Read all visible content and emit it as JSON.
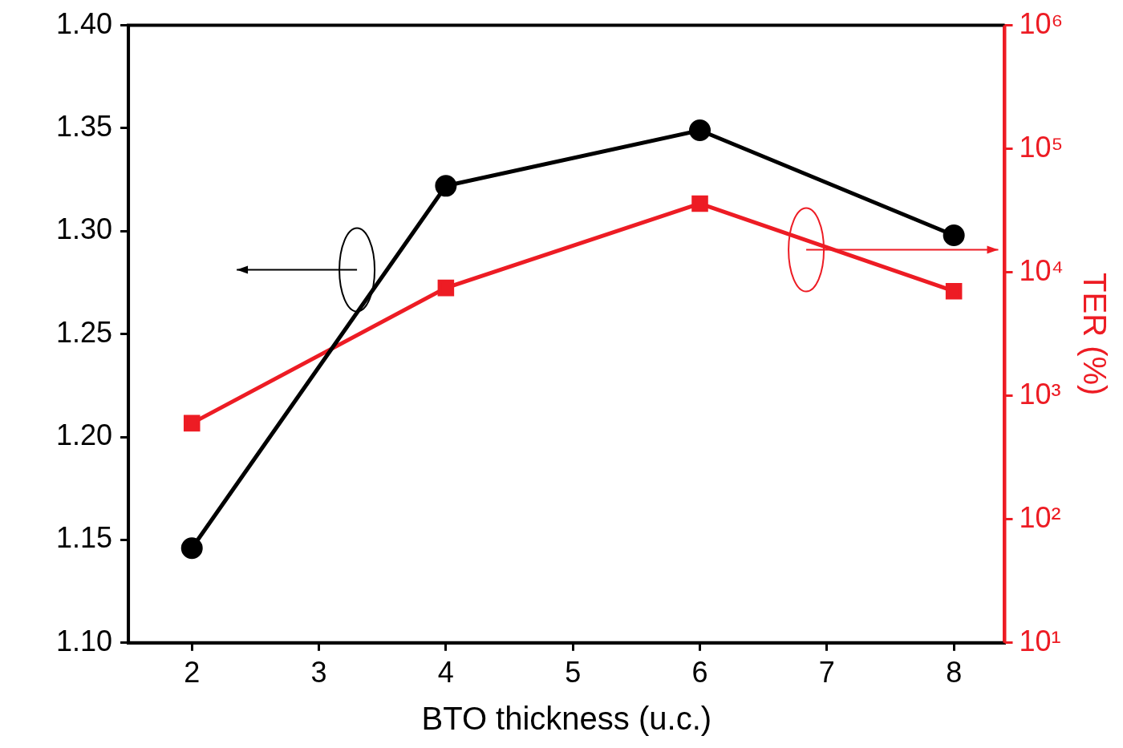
{
  "chart_data": {
    "type": "line",
    "x_label": "BTO thickness (u.c.)",
    "y2_label": "TER (%)",
    "x": [
      2,
      4,
      6,
      8
    ],
    "xlim": [
      1.5,
      8.4
    ],
    "xticks": [
      2,
      3,
      4,
      5,
      6,
      7,
      8
    ],
    "ylim": [
      1.1,
      1.4
    ],
    "yticks": [
      {
        "value": 1.1,
        "label": "1.10"
      },
      {
        "value": 1.15,
        "label": "1.15"
      },
      {
        "value": 1.2,
        "label": "1.20"
      },
      {
        "value": 1.25,
        "label": "1.25"
      },
      {
        "value": 1.3,
        "label": "1.30"
      },
      {
        "value": 1.35,
        "label": "1.35"
      },
      {
        "value": 1.4,
        "label": "1.40"
      }
    ],
    "y2lim": [
      10,
      1000000
    ],
    "y2ticks": [
      {
        "value": 10,
        "label": "10¹"
      },
      {
        "value": 100,
        "label": "10²"
      },
      {
        "value": 1000,
        "label": "10³"
      },
      {
        "value": 10000,
        "label": "10⁴"
      },
      {
        "value": 100000,
        "label": "10⁵"
      },
      {
        "value": 1000000,
        "label": "10⁶"
      }
    ],
    "log": "y2",
    "grid": false,
    "series": [
      {
        "color": "#000000",
        "marker": "circle",
        "line_style": "solid",
        "values": [
          1.146,
          1.322,
          1.349,
          1.298
        ]
      },
      {
        "color": "#ed1c24",
        "marker": "square",
        "line_style": "solid",
        "axis": "y2",
        "values": [
          600,
          7480,
          36000,
          7040
        ]
      }
    ]
  }
}
